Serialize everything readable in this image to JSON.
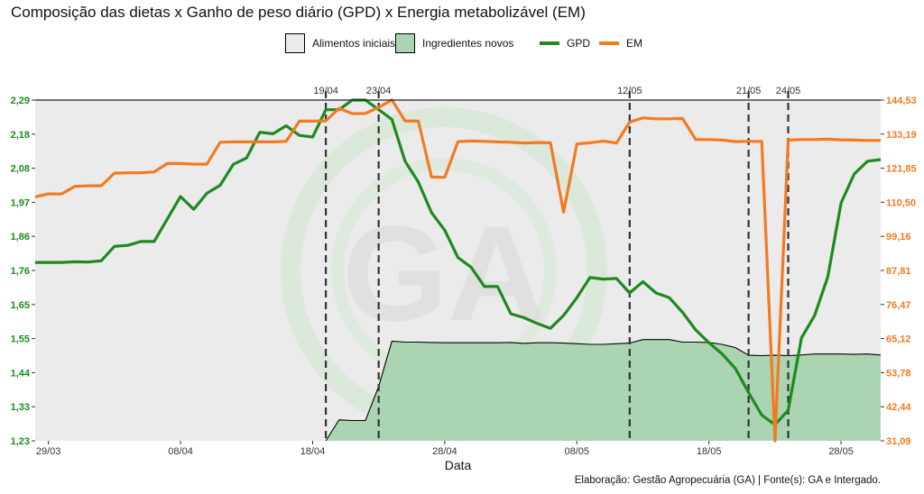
{
  "chart_data": {
    "type": "area",
    "title": "Composição das dietas x Ganho de peso diário (GPD) x Energia metabolizável (EM)",
    "xlabel": "Data",
    "caption": "Elaboração: Gestão Agropecuária (GA) | Fonte(s): GA e Intergado.",
    "legend": {
      "position": "top",
      "entries": [
        {
          "key": "area-base",
          "label": "Alimentos iniciais"
        },
        {
          "key": "area-new",
          "label": "Ingredientes novos"
        },
        {
          "key": "gpd",
          "label": "GPD"
        },
        {
          "key": "em",
          "label": "EM"
        }
      ]
    },
    "x_axis": {
      "ticks": [
        {
          "label": "29/03",
          "day": 0
        },
        {
          "label": "08/04",
          "day": 10
        },
        {
          "label": "18/04",
          "day": 20
        },
        {
          "label": "28/04",
          "day": 30
        },
        {
          "label": "08/05",
          "day": 40
        },
        {
          "label": "18/05",
          "day": 50
        },
        {
          "label": "28/05",
          "day": 60
        }
      ],
      "range_days": [
        -1,
        63
      ]
    },
    "y_left": {
      "name": "GPD",
      "ticks": [
        "1,23",
        "1,33",
        "1,44",
        "1,55",
        "1,65",
        "1,76",
        "1,86",
        "1,97",
        "2,08",
        "2,18",
        "2,29"
      ],
      "range": [
        1.23,
        2.29
      ],
      "color": "#1e8a1e"
    },
    "y_right": {
      "name": "EM",
      "ticks": [
        "31,09",
        "42,44",
        "53,78",
        "65,12",
        "76,47",
        "87,81",
        "99,16",
        "110,50",
        "121,85",
        "133,19",
        "144,53"
      ],
      "range": [
        31.09,
        144.53
      ],
      "color": "#f47a20"
    },
    "events": [
      {
        "label": "19/04",
        "day": 21
      },
      {
        "label": "23/04",
        "day": 25
      },
      {
        "label": "12/05",
        "day": 44
      },
      {
        "label": "21/05",
        "day": 53
      },
      {
        "label": "24/05",
        "day": 56
      }
    ],
    "series": [
      {
        "name": "GPD",
        "axis": "left",
        "color": "#1e8a1e",
        "points": [
          [
            -1,
            1.785
          ],
          [
            0,
            1.785
          ],
          [
            1,
            1.785
          ],
          [
            2,
            1.787
          ],
          [
            3,
            1.786
          ],
          [
            4,
            1.79
          ],
          [
            5,
            1.835
          ],
          [
            6,
            1.838
          ],
          [
            7,
            1.85
          ],
          [
            8,
            1.85
          ],
          [
            9,
            1.92
          ],
          [
            10,
            1.99
          ],
          [
            11,
            1.95
          ],
          [
            12,
            2.0
          ],
          [
            13,
            2.025
          ],
          [
            14,
            2.09
          ],
          [
            15,
            2.11
          ],
          [
            16,
            2.19
          ],
          [
            17,
            2.185
          ],
          [
            18,
            2.21
          ],
          [
            19,
            2.18
          ],
          [
            20,
            2.175
          ],
          [
            21,
            2.26
          ],
          [
            22,
            2.26
          ],
          [
            23,
            2.29
          ],
          [
            24,
            2.29
          ],
          [
            25,
            2.26
          ],
          [
            26,
            2.23
          ],
          [
            27,
            2.1
          ],
          [
            28,
            2.035
          ],
          [
            29,
            1.94
          ],
          [
            30,
            1.885
          ],
          [
            31,
            1.8
          ],
          [
            32,
            1.77
          ],
          [
            33,
            1.71
          ],
          [
            34,
            1.71
          ],
          [
            35,
            1.625
          ],
          [
            36,
            1.613
          ],
          [
            37,
            1.595
          ],
          [
            38,
            1.58
          ],
          [
            39,
            1.62
          ],
          [
            40,
            1.675
          ],
          [
            41,
            1.738
          ],
          [
            42,
            1.733
          ],
          [
            43,
            1.735
          ],
          [
            44,
            1.69
          ],
          [
            45,
            1.725
          ],
          [
            46,
            1.69
          ],
          [
            47,
            1.675
          ],
          [
            48,
            1.63
          ],
          [
            49,
            1.575
          ],
          [
            50,
            1.535
          ],
          [
            51,
            1.5
          ],
          [
            52,
            1.455
          ],
          [
            53,
            1.38
          ],
          [
            54,
            1.31
          ],
          [
            55,
            1.28
          ],
          [
            56,
            1.325
          ],
          [
            57,
            1.55
          ],
          [
            58,
            1.62
          ],
          [
            59,
            1.74
          ],
          [
            60,
            1.97
          ],
          [
            61,
            2.06
          ],
          [
            62,
            2.1
          ],
          [
            63,
            2.105
          ]
        ]
      },
      {
        "name": "EM",
        "axis": "right",
        "color": "#f47a20",
        "points": [
          [
            -1,
            112.3
          ],
          [
            0,
            113.3
          ],
          [
            1,
            113.3
          ],
          [
            2,
            115.8
          ],
          [
            3,
            116.0
          ],
          [
            4,
            116.0
          ],
          [
            5,
            120.2
          ],
          [
            6,
            120.3
          ],
          [
            7,
            120.3
          ],
          [
            8,
            120.6
          ],
          [
            9,
            123.4
          ],
          [
            10,
            123.4
          ],
          [
            11,
            123.2
          ],
          [
            12,
            123.2
          ],
          [
            13,
            130.5
          ],
          [
            14,
            130.6
          ],
          [
            15,
            130.6
          ],
          [
            16,
            130.6
          ],
          [
            17,
            130.6
          ],
          [
            18,
            130.8
          ],
          [
            19,
            137.5
          ],
          [
            20,
            137.5
          ],
          [
            21,
            137.6
          ],
          [
            22,
            141.8
          ],
          [
            23,
            140.0
          ],
          [
            24,
            140.1
          ],
          [
            25,
            142.1
          ],
          [
            26,
            144.6
          ],
          [
            27,
            137.6
          ],
          [
            28,
            137.5
          ],
          [
            29,
            118.9
          ],
          [
            30,
            118.8
          ],
          [
            31,
            130.7
          ],
          [
            32,
            130.9
          ],
          [
            33,
            130.8
          ],
          [
            34,
            130.6
          ],
          [
            35,
            130.5
          ],
          [
            36,
            130.2
          ],
          [
            37,
            130.4
          ],
          [
            38,
            130.3
          ],
          [
            39,
            107.2
          ],
          [
            40,
            129.9
          ],
          [
            41,
            130.3
          ],
          [
            42,
            130.9
          ],
          [
            43,
            130.2
          ],
          [
            44,
            137.2
          ],
          [
            45,
            138.6
          ],
          [
            46,
            138.3
          ],
          [
            47,
            138.3
          ],
          [
            48,
            138.4
          ],
          [
            49,
            131.4
          ],
          [
            50,
            131.4
          ],
          [
            51,
            131.2
          ],
          [
            52,
            130.7
          ],
          [
            53,
            130.8
          ],
          [
            54,
            130.8
          ],
          [
            55,
            31.09
          ],
          [
            56,
            131.2
          ],
          [
            57,
            131.4
          ],
          [
            58,
            131.4
          ],
          [
            59,
            131.5
          ],
          [
            60,
            131.3
          ],
          [
            61,
            131.2
          ],
          [
            62,
            131.1
          ],
          [
            63,
            131.1
          ]
        ]
      },
      {
        "name": "Ingredientes novos",
        "axis": "left",
        "color": "#abd5b2",
        "points": [
          [
            21,
            1.23
          ],
          [
            22,
            1.295
          ],
          [
            23,
            1.293
          ],
          [
            24,
            1.293
          ],
          [
            25,
            1.4
          ],
          [
            26,
            1.54
          ],
          [
            27,
            1.537
          ],
          [
            28,
            1.537
          ],
          [
            29,
            1.536
          ],
          [
            30,
            1.535
          ],
          [
            31,
            1.535
          ],
          [
            32,
            1.535
          ],
          [
            33,
            1.535
          ],
          [
            34,
            1.535
          ],
          [
            35,
            1.536
          ],
          [
            36,
            1.533
          ],
          [
            37,
            1.535
          ],
          [
            38,
            1.535
          ],
          [
            39,
            1.534
          ],
          [
            40,
            1.532
          ],
          [
            41,
            1.53
          ],
          [
            42,
            1.53
          ],
          [
            43,
            1.532
          ],
          [
            44,
            1.534
          ],
          [
            45,
            1.545
          ],
          [
            46,
            1.545
          ],
          [
            47,
            1.545
          ],
          [
            48,
            1.537
          ],
          [
            49,
            1.537
          ],
          [
            50,
            1.536
          ],
          [
            51,
            1.53
          ],
          [
            52,
            1.52
          ],
          [
            53,
            1.496
          ],
          [
            54,
            1.495
          ],
          [
            55,
            1.496
          ],
          [
            56,
            1.495
          ],
          [
            57,
            1.497
          ],
          [
            58,
            1.5
          ],
          [
            59,
            1.5
          ],
          [
            60,
            1.5
          ],
          [
            61,
            1.499
          ],
          [
            62,
            1.5
          ],
          [
            63,
            1.497
          ]
        ]
      }
    ],
    "grid": true,
    "watermark": "GA",
    "colors": {
      "panel": "#ebebeb",
      "area_edge": "#000000",
      "event_line": "#333333"
    }
  }
}
